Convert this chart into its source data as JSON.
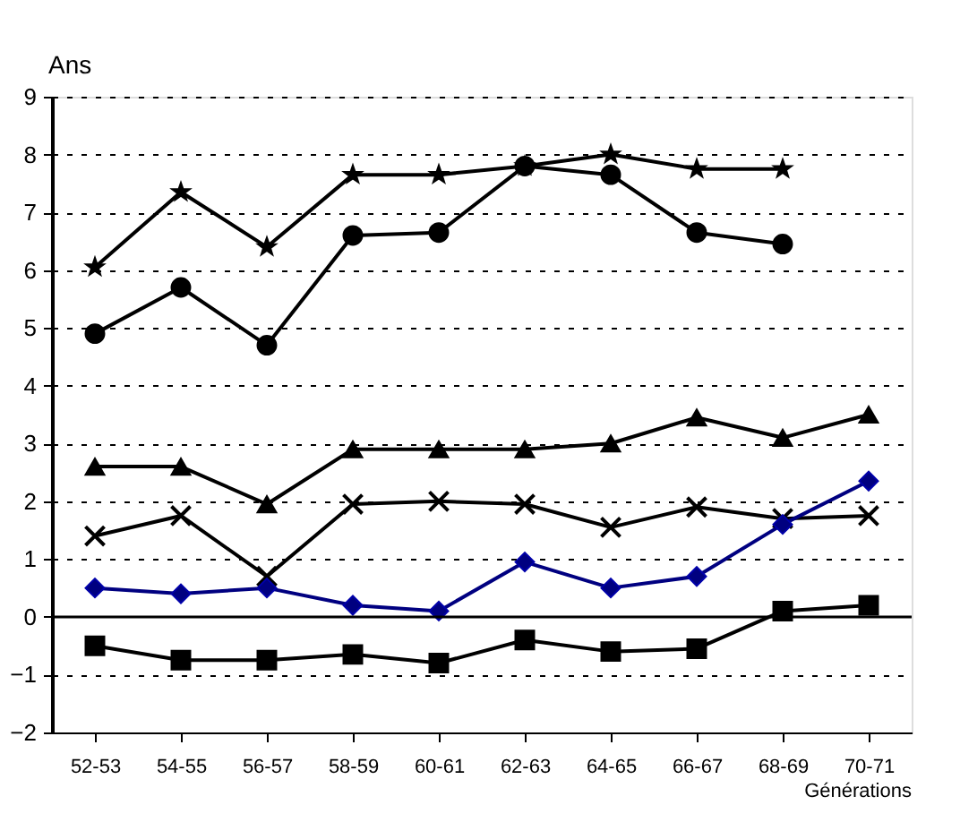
{
  "chart_data": {
    "type": "line",
    "ylabel": "Ans",
    "xlabel": "Générations",
    "categories": [
      "52-53",
      "54-55",
      "56-57",
      "58-59",
      "60-61",
      "62-63",
      "64-65",
      "66-67",
      "68-69",
      "70-71"
    ],
    "series": [
      {
        "color": "#000000",
        "marker": "star",
        "values": [
          6.05,
          7.35,
          6.4,
          7.65,
          7.65,
          7.8,
          8.0,
          7.75,
          7.75,
          null
        ]
      },
      {
        "color": "#000000",
        "marker": "circle",
        "values": [
          4.9,
          5.7,
          4.7,
          6.6,
          6.65,
          7.8,
          7.65,
          6.65,
          6.45,
          null
        ]
      },
      {
        "color": "#000000",
        "marker": "triangle",
        "values": [
          2.6,
          2.6,
          1.95,
          2.9,
          2.9,
          2.9,
          3.0,
          3.45,
          3.1,
          3.5
        ]
      },
      {
        "color": "#000000",
        "marker": "cross",
        "values": [
          1.4,
          1.75,
          0.7,
          1.95,
          2.0,
          1.95,
          1.55,
          1.9,
          1.7,
          1.75
        ]
      },
      {
        "color": "#000080",
        "marker": "diamond",
        "values": [
          0.5,
          0.4,
          0.5,
          0.2,
          0.1,
          0.95,
          0.5,
          0.7,
          1.6,
          2.35
        ]
      },
      {
        "color": "#000000",
        "marker": "square",
        "values": [
          -0.5,
          -0.75,
          -0.75,
          -0.65,
          -0.8,
          -0.4,
          -0.6,
          -0.55,
          0.1,
          0.2
        ]
      }
    ],
    "ylim": [
      -2,
      9
    ],
    "yticks": [
      -2,
      -1,
      0,
      1,
      2,
      3,
      4,
      5,
      6,
      7,
      8,
      9
    ],
    "grid": "y",
    "ref_lines": [
      {
        "axis": "y",
        "value": 0,
        "color": "#000000"
      }
    ]
  }
}
